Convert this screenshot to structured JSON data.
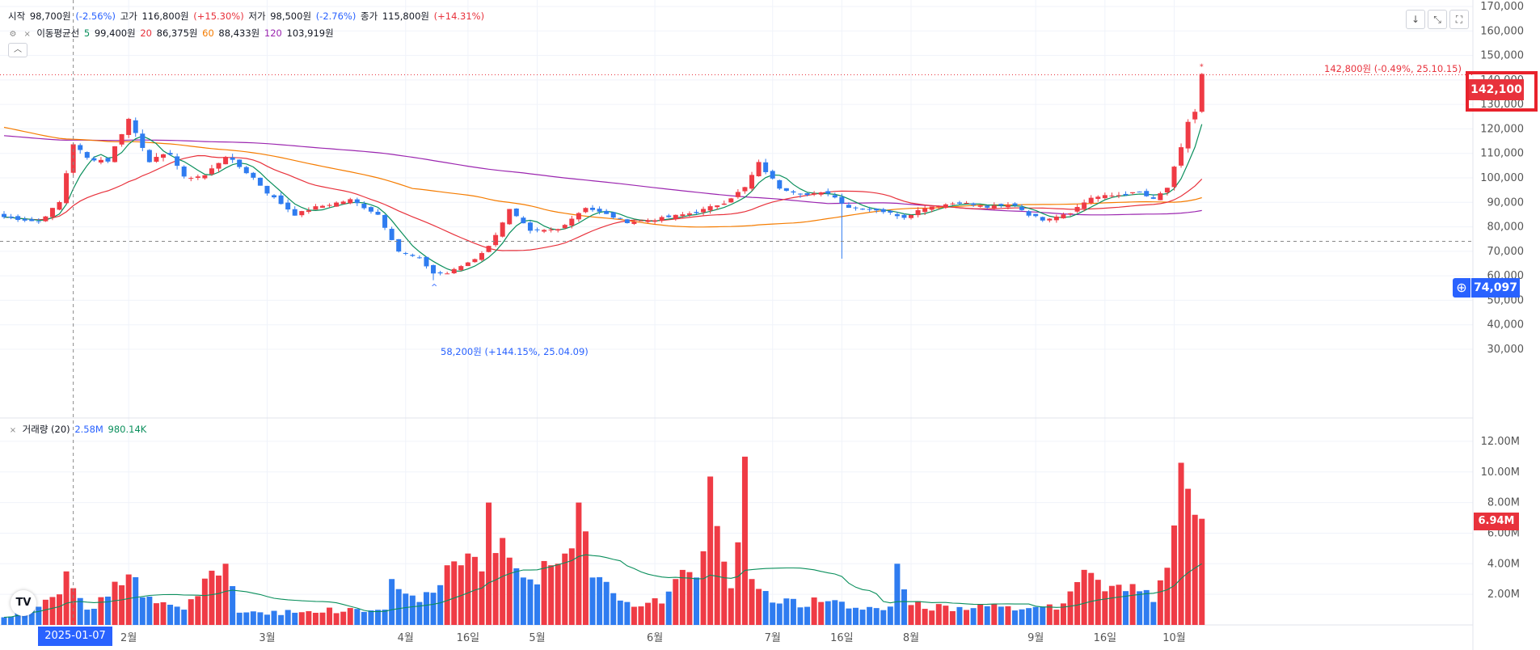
{
  "ohlc": {
    "open_label": "시작",
    "open": "98,700원",
    "open_chg": "(-2.56%)",
    "high_label": "고가",
    "high": "116,800원",
    "high_chg": "(+15.30%)",
    "low_label": "저가",
    "low": "98,500원",
    "low_chg": "(-2.76%)",
    "close_label": "종가",
    "close": "115,800원",
    "close_chg": "(+14.31%)"
  },
  "ma": {
    "label": "이동평균선",
    "p5": "5",
    "v5": "99,400원",
    "p20": "20",
    "v20": "86,375원",
    "p60": "60",
    "v60": "88,433원",
    "p120": "120",
    "v120": "103,919원"
  },
  "volume_legend": {
    "label": "거래량 (20)",
    "v1": "2.58M",
    "v2": "980.14K"
  },
  "annotations": {
    "high_note": "142,800원 (-0.49%, 25.10.15)",
    "low_note": "58,200원 (+144.15%, 25.04.09)"
  },
  "price_tags": {
    "last": "142,100",
    "crosshair": "74,097",
    "volume_last": "6.94M"
  },
  "crosshair_date": "2025-01-07",
  "icons": {
    "download": "download-icon",
    "expand": "expand-icon",
    "fullscreen": "fullscreen-icon",
    "plus": "plus-icon",
    "logo": "tradingview-logo"
  },
  "chart_data": {
    "type": "candlestick",
    "price_axis": {
      "ticks": [
        "170,000",
        "160,000",
        "150,000",
        "140,000",
        "130,000",
        "120,000",
        "110,000",
        "100,000",
        "90,000",
        "80,000",
        "70,000",
        "60,000",
        "50,000",
        "40,000",
        "30,000"
      ],
      "range": [
        30000,
        170000
      ]
    },
    "volume_axis": {
      "ticks": [
        "12.00M",
        "10.00M",
        "8.00M",
        "6.00M",
        "4.00M",
        "2.00M"
      ],
      "range": [
        0,
        13000000
      ]
    },
    "x_ticks": [
      {
        "label": "2월",
        "index": 18
      },
      {
        "label": "3월",
        "index": 38
      },
      {
        "label": "4월",
        "index": 58
      },
      {
        "label": "16일",
        "index": 67
      },
      {
        "label": "5월",
        "index": 77
      },
      {
        "label": "6월",
        "index": 94
      },
      {
        "label": "7월",
        "index": 111
      },
      {
        "label": "16일",
        "index": 121
      },
      {
        "label": "8월",
        "index": 131
      },
      {
        "label": "9월",
        "index": 149
      },
      {
        "label": "16일",
        "index": 159
      },
      {
        "label": "10월",
        "index": 169
      }
    ],
    "close_keyframes": [
      [
        0,
        84000
      ],
      [
        5,
        82000
      ],
      [
        8,
        90000
      ],
      [
        10,
        114000
      ],
      [
        12,
        108000
      ],
      [
        15,
        107000
      ],
      [
        18,
        124000
      ],
      [
        21,
        107000
      ],
      [
        24,
        110000
      ],
      [
        26,
        100000
      ],
      [
        29,
        101000
      ],
      [
        32,
        109000
      ],
      [
        36,
        100000
      ],
      [
        38,
        94000
      ],
      [
        42,
        85000
      ],
      [
        45,
        88000
      ],
      [
        50,
        91000
      ],
      [
        54,
        85000
      ],
      [
        57,
        70000
      ],
      [
        60,
        67000
      ],
      [
        62,
        61000
      ],
      [
        64,
        61000
      ],
      [
        66,
        64000
      ],
      [
        68,
        67000
      ],
      [
        70,
        72000
      ],
      [
        72,
        82000
      ],
      [
        73,
        87000
      ],
      [
        76,
        78000
      ],
      [
        80,
        79000
      ],
      [
        84,
        88000
      ],
      [
        88,
        84000
      ],
      [
        90,
        82000
      ],
      [
        94,
        83000
      ],
      [
        100,
        86000
      ],
      [
        104,
        90000
      ],
      [
        107,
        96000
      ],
      [
        109,
        106000
      ],
      [
        112,
        96000
      ],
      [
        116,
        93000
      ],
      [
        119,
        94000
      ],
      [
        122,
        88000
      ],
      [
        126,
        87000
      ],
      [
        130,
        84000
      ],
      [
        133,
        88000
      ],
      [
        138,
        90000
      ],
      [
        142,
        88000
      ],
      [
        146,
        89000
      ],
      [
        148,
        85000
      ],
      [
        150,
        83000
      ],
      [
        154,
        86000
      ],
      [
        157,
        92000
      ],
      [
        161,
        93000
      ],
      [
        164,
        94000
      ],
      [
        166,
        91000
      ],
      [
        168,
        96000
      ],
      [
        170,
        112000
      ],
      [
        171,
        123000
      ],
      [
        172,
        127000
      ],
      [
        173,
        142100
      ]
    ],
    "volume_keyframes": [
      [
        0,
        0.5
      ],
      [
        8,
        2.0
      ],
      [
        9,
        3.5
      ],
      [
        10,
        2.4
      ],
      [
        12,
        1.0
      ],
      [
        18,
        3.3
      ],
      [
        20,
        1.8
      ],
      [
        26,
        1.0
      ],
      [
        32,
        4.0
      ],
      [
        34,
        0.8
      ],
      [
        44,
        0.9
      ],
      [
        55,
        1.0
      ],
      [
        56,
        3.0
      ],
      [
        60,
        1.5
      ],
      [
        63,
        2.6
      ],
      [
        64,
        3.9
      ],
      [
        66,
        3.9
      ],
      [
        69,
        3.5
      ],
      [
        70,
        8.0
      ],
      [
        71,
        4.7
      ],
      [
        73,
        4.4
      ],
      [
        75,
        3.1
      ],
      [
        79,
        3.9
      ],
      [
        80,
        4.0
      ],
      [
        83,
        8.0
      ],
      [
        85,
        3.1
      ],
      [
        90,
        1.5
      ],
      [
        95,
        1.4
      ],
      [
        97,
        3.0
      ],
      [
        100,
        3.1
      ],
      [
        102,
        9.7
      ],
      [
        105,
        2.4
      ],
      [
        106,
        5.4
      ],
      [
        107,
        11.0
      ],
      [
        108,
        3.0
      ],
      [
        112,
        1.4
      ],
      [
        118,
        1.5
      ],
      [
        124,
        1.0
      ],
      [
        128,
        1.2
      ],
      [
        129,
        4.0
      ],
      [
        131,
        1.3
      ],
      [
        140,
        1.1
      ],
      [
        148,
        1.1
      ],
      [
        150,
        1.2
      ],
      [
        152,
        1.0
      ],
      [
        155,
        2.8
      ],
      [
        157,
        3.4
      ],
      [
        159,
        2.2
      ],
      [
        164,
        2.2
      ],
      [
        166,
        1.5
      ],
      [
        169,
        6.5
      ],
      [
        170,
        10.6
      ],
      [
        171,
        8.9
      ],
      [
        172,
        7.2
      ],
      [
        173,
        6.94
      ]
    ],
    "high_marker": {
      "index": 173,
      "value": 142800
    },
    "low_marker": {
      "index": 62,
      "value": 58200
    }
  }
}
